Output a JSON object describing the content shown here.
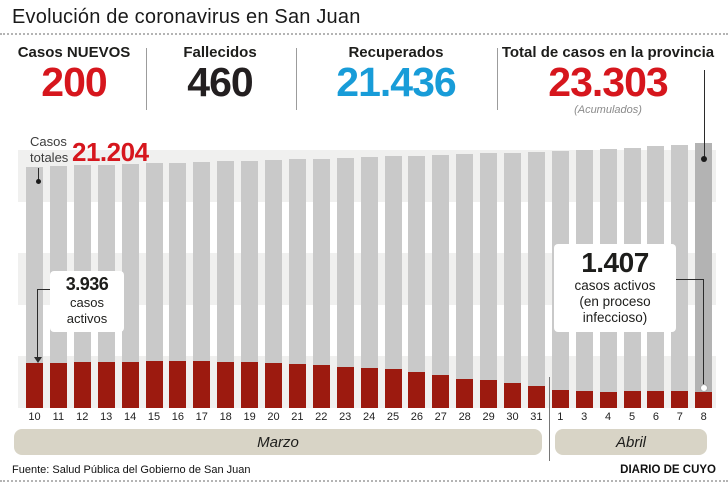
{
  "title": "Evolución de coronavirus en San Juan",
  "stats": [
    {
      "label": "Casos NUEVOS",
      "value": "200",
      "color": "#d6161d"
    },
    {
      "label": "Fallecidos",
      "value": "460",
      "color": "#231f20"
    },
    {
      "label": "Recuperados",
      "value": "21.436",
      "color": "#189cd8"
    },
    {
      "label": "Total de casos en la provincia",
      "value": "23.303",
      "note": "(Acumulados)",
      "color": "#d6161d"
    }
  ],
  "annotations": {
    "totals_label_line1": "Casos",
    "totals_label_line2": "totales",
    "totals_start_value": "21.204",
    "active_start_value": "3.936",
    "active_start_line1": "casos",
    "active_start_line2": "activos",
    "active_end_value": "1.407",
    "active_end_line1": "casos activos",
    "active_end_line2": "(en proceso",
    "active_end_line3": "infeccioso)"
  },
  "chart_data": {
    "type": "bar",
    "x": [
      "10",
      "11",
      "12",
      "13",
      "14",
      "15",
      "16",
      "17",
      "18",
      "19",
      "20",
      "21",
      "22",
      "23",
      "24",
      "25",
      "26",
      "27",
      "28",
      "29",
      "30",
      "31",
      "1",
      "3",
      "4",
      "5",
      "6",
      "7",
      "8"
    ],
    "months": [
      {
        "label": "Marzo",
        "span": 22
      },
      {
        "label": "Abril",
        "span": 7
      }
    ],
    "series": [
      {
        "name": "Casos totales",
        "color": "#c9c9c9",
        "last_bar_color": "#b3b3b3",
        "values": [
          21204,
          21268,
          21330,
          21390,
          21448,
          21505,
          21560,
          21618,
          21678,
          21740,
          21800,
          21862,
          21925,
          21990,
          22055,
          22120,
          22186,
          22252,
          22318,
          22384,
          22450,
          22516,
          22600,
          22700,
          22800,
          22900,
          23000,
          23103,
          23303
        ]
      },
      {
        "name": "Casos activos (en proceso infeccioso)",
        "color": "#9c1a0f",
        "values": [
          3936,
          3990,
          4030,
          4060,
          4075,
          4090,
          4120,
          4130,
          4080,
          4010,
          3950,
          3910,
          3780,
          3640,
          3560,
          3470,
          3170,
          2860,
          2580,
          2450,
          2240,
          1950,
          1560,
          1480,
          1450,
          1490,
          1480,
          1520,
          1407
        ]
      }
    ],
    "ylim": [
      0,
      23303
    ],
    "legend_position": "none",
    "grid": "horizontal-bands"
  },
  "footer": {
    "source": "Fuente: Salud Pública del Gobierno de San Juan",
    "credit": "DIARIO DE CUYO"
  }
}
